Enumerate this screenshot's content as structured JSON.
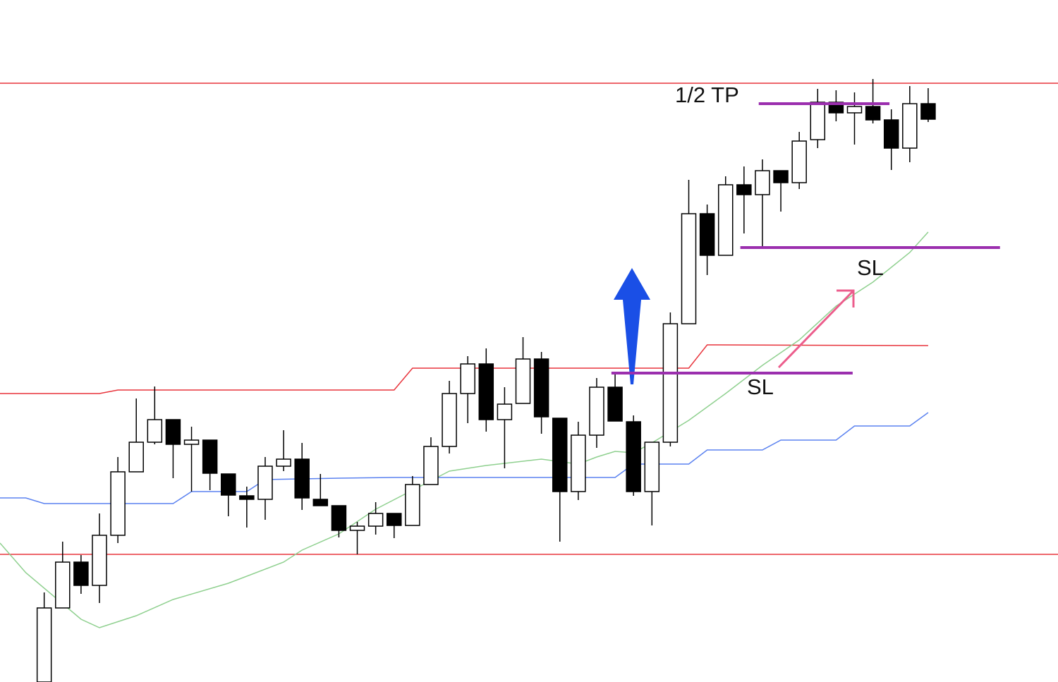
{
  "chart_data": {
    "type": "candlestick",
    "xlim": [
      -2.4,
      55.05
    ],
    "ylim": [
      0,
      967
    ],
    "up_color": "#ffffff",
    "down_color": "#000000",
    "open": [
      0,
      105,
      170,
      137,
      208,
      298,
      340,
      372,
      337,
      343,
      295,
      264,
      259,
      306,
      316,
      259,
      250,
      215,
      221,
      239,
      222,
      280,
      334,
      409,
      451,
      372,
      395,
      458,
      374,
      270,
      350,
      418,
      369,
      270,
      340,
      508,
      664,
      605,
      705,
      691,
      725,
      708,
      769,
      822,
      807,
      816,
      797,
      757,
      820
    ],
    "high": [
      127,
      199,
      180,
      239,
      319,
      402,
      419,
      372,
      362,
      343,
      295,
      277,
      319,
      357,
      339,
      295,
      250,
      227,
      255,
      239,
      292,
      347,
      427,
      462,
      473,
      418,
      489,
      468,
      374,
      369,
      431,
      439,
      378,
      340,
      524,
      712,
      677,
      717,
      731,
      741,
      725,
      780,
      841,
      839,
      836,
      855,
      812,
      845,
      842
    ],
    "low": [
      0,
      105,
      125,
      112,
      197,
      298,
      337,
      289,
      270,
      272,
      235,
      219,
      230,
      299,
      244,
      250,
      205,
      181,
      209,
      204,
      222,
      280,
      324,
      367,
      355,
      303,
      395,
      352,
      199,
      258,
      332,
      370,
      264,
      222,
      334,
      508,
      577,
      605,
      636,
      617,
      667,
      699,
      757,
      795,
      762,
      792,
      726,
      737,
      794
    ],
    "close": [
      105,
      170,
      137,
      208,
      298,
      340,
      372,
      337,
      343,
      296,
      265,
      259,
      306,
      316,
      261,
      250,
      215,
      221,
      239,
      222,
      280,
      334,
      409,
      451,
      372,
      394,
      458,
      376,
      270,
      350,
      418,
      370,
      270,
      340,
      508,
      664,
      605,
      705,
      691,
      725,
      708,
      767,
      822,
      807,
      816,
      797,
      757,
      820,
      798
    ],
    "series": [
      {
        "color": "#e8343c",
        "x": [
          -2.4,
          3,
          4,
          19,
          20,
          35,
          36,
          48
        ],
        "values": [
          409,
          409,
          414,
          414,
          445,
          445,
          478,
          477
        ]
      },
      {
        "color": "#5b82f0",
        "x": [
          -2.4,
          -1,
          0,
          7,
          8,
          11,
          12,
          16,
          19,
          20,
          31,
          32,
          35,
          36,
          39,
          40,
          43,
          44,
          47,
          48
        ],
        "values": [
          261,
          261,
          253,
          253,
          270,
          270,
          287,
          289,
          290,
          290,
          290,
          309,
          309,
          329,
          329,
          343,
          343,
          363,
          363,
          382
        ]
      },
      {
        "color": "#8fd08f",
        "x": [
          -2.4,
          -1,
          2,
          3,
          5,
          7,
          10,
          13,
          14,
          16,
          18,
          20,
          22,
          24,
          27,
          29,
          30,
          31,
          32,
          33,
          35,
          37,
          39,
          41,
          43,
          45,
          47,
          48
        ],
        "values": [
          197,
          155,
          89,
          77,
          94,
          117,
          140,
          170,
          187,
          210,
          245,
          272,
          299,
          307,
          316,
          309,
          319,
          327,
          325,
          339,
          371,
          409,
          449,
          485,
          533,
          567,
          609,
          638
        ]
      }
    ],
    "levels": [
      {
        "value": 849,
        "color": "#e8343c"
      },
      {
        "value": 181,
        "color": "#e8343c"
      }
    ],
    "annotations": [
      {
        "text": "1/2 TP",
        "value": 820,
        "x": [
          38.8,
          45.9
        ],
        "color": "#9b2fae"
      },
      {
        "text": "SL",
        "value": 616,
        "x": [
          37.8,
          51.9
        ],
        "color": "#9b2fae"
      },
      {
        "text": "SL",
        "value": 438,
        "x": [
          30.8,
          43.9
        ],
        "color": "#9b2fae"
      }
    ]
  }
}
